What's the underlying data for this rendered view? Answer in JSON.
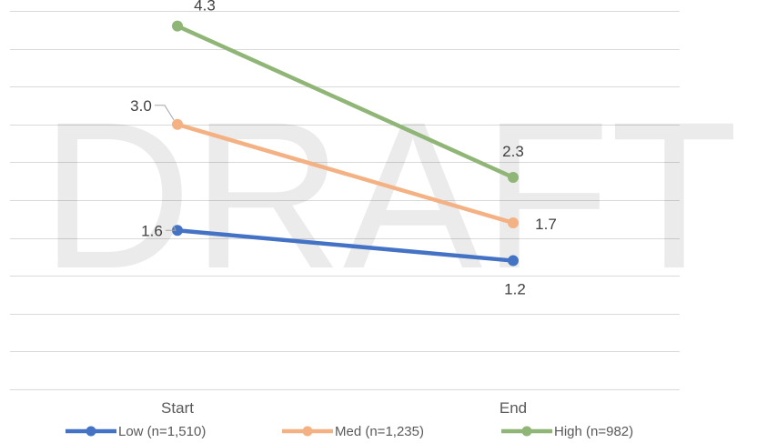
{
  "watermark": "DRAFT",
  "chart_data": {
    "type": "line",
    "categories": [
      "Start",
      "End"
    ],
    "series": [
      {
        "name": "Low (n=1,510)",
        "color": "#4472c4",
        "values": [
          1.6,
          1.2
        ],
        "labels": [
          "1.6",
          "1.2"
        ]
      },
      {
        "name": "Med (n=1,235)",
        "color": "#f4b183",
        "values": [
          3.0,
          1.7
        ],
        "labels": [
          "3.0",
          "1.7"
        ]
      },
      {
        "name": "High (n=982)",
        "color": "#8fb676",
        "values": [
          4.3,
          2.3
        ],
        "labels": [
          "4.3",
          "2.3"
        ]
      }
    ],
    "ylim": [
      -0.5,
      4.5
    ],
    "y_gridline_step": 0.5,
    "grid": true,
    "legend_position": "bottom",
    "title": "",
    "xlabel": "",
    "ylabel": ""
  }
}
